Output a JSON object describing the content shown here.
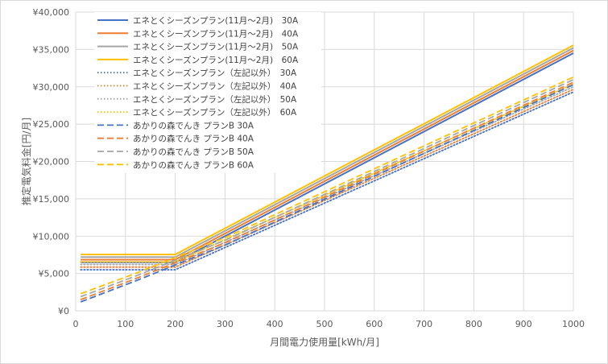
{
  "chart_data": {
    "type": "line",
    "title": "",
    "xlabel": "月間電力使用量[kWh/月]",
    "ylabel": "推定電気料金[円/月]",
    "xlim": [
      0,
      1000
    ],
    "ylim": [
      0,
      40000
    ],
    "x_ticks": [
      "0",
      "100",
      "200",
      "300",
      "400",
      "500",
      "600",
      "700",
      "800",
      "900",
      "1000"
    ],
    "y_ticks": [
      "¥0",
      "¥5,000",
      "¥10,000",
      "¥15,000",
      "¥20,000",
      "¥25,000",
      "¥30,000",
      "¥35,000",
      "¥40,000"
    ],
    "x_tick_values": [
      0,
      100,
      200,
      300,
      400,
      500,
      600,
      700,
      800,
      900,
      1000
    ],
    "y_tick_values": [
      0,
      5000,
      10000,
      15000,
      20000,
      25000,
      30000,
      35000,
      40000
    ],
    "grid": true,
    "legend_position": "top-left",
    "series": [
      {
        "name": "エネとくシーズンプラン(11月～2月)　30A",
        "color": "#4472C4",
        "style": "solid",
        "x": [
          10,
          200,
          1000
        ],
        "y": [
          6500,
          6500,
          34500
        ]
      },
      {
        "name": "エネとくシーズンプラン(11月～2月)　40A",
        "color": "#ED7D31",
        "style": "solid",
        "x": [
          10,
          200,
          1000
        ],
        "y": [
          6850,
          6850,
          34850
        ]
      },
      {
        "name": "エネとくシーズンプラン(11月～2月)　50A",
        "color": "#A5A5A5",
        "style": "solid",
        "x": [
          10,
          200,
          1000
        ],
        "y": [
          7200,
          7200,
          35200
        ]
      },
      {
        "name": "エネとくシーズンプラン(11月～2月)　60A",
        "color": "#FFC000",
        "style": "solid",
        "x": [
          10,
          200,
          1000
        ],
        "y": [
          7550,
          7550,
          35550
        ]
      },
      {
        "name": "エネとくシーズンプラン（左記以外）　30A",
        "color": "#4472C4",
        "style": "dotted",
        "x": [
          10,
          200,
          1000
        ],
        "y": [
          5500,
          5500,
          29300
        ]
      },
      {
        "name": "エネとくシーズンプラン（左記以外）　40A",
        "color": "#ED7D31",
        "style": "dotted",
        "x": [
          10,
          200,
          1000
        ],
        "y": [
          5850,
          5850,
          29650
        ]
      },
      {
        "name": "エネとくシーズンプラン（左記以外）　50A",
        "color": "#A5A5A5",
        "style": "dotted",
        "x": [
          10,
          200,
          1000
        ],
        "y": [
          6200,
          6200,
          30000
        ]
      },
      {
        "name": "エネとくシーズンプラン（左記以外）　60A",
        "color": "#FFC000",
        "style": "dotted",
        "x": [
          10,
          200,
          1000
        ],
        "y": [
          6550,
          6550,
          30350
        ]
      },
      {
        "name": "あかりの森でんき プランB 30A",
        "color": "#4472C4",
        "style": "dashed",
        "x": [
          10,
          120,
          300,
          1000
        ],
        "y": [
          1200,
          4000,
          8800,
          30300
        ]
      },
      {
        "name": "あかりの森でんき プランB 40A",
        "color": "#ED7D31",
        "style": "dashed",
        "x": [
          10,
          120,
          300,
          1000
        ],
        "y": [
          1500,
          4300,
          9100,
          30600
        ]
      },
      {
        "name": "あかりの森でんき プランB 50A",
        "color": "#A5A5A5",
        "style": "dashed",
        "x": [
          10,
          120,
          300,
          1000
        ],
        "y": [
          1900,
          4650,
          9450,
          30950
        ]
      },
      {
        "name": "あかりの森でんき プランB 60A",
        "color": "#FFC000",
        "style": "dashed",
        "x": [
          10,
          120,
          300,
          1000
        ],
        "y": [
          2300,
          5000,
          9800,
          31300
        ]
      }
    ]
  }
}
